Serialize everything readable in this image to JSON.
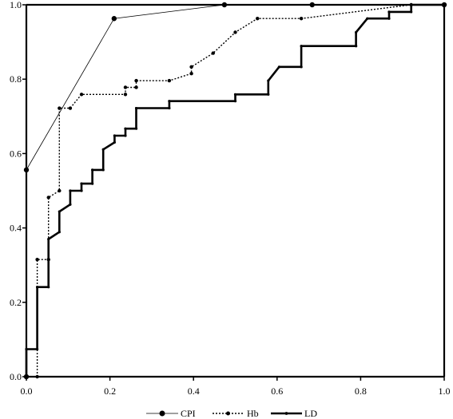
{
  "chart_data": {
    "type": "line",
    "title": "",
    "xlabel": "",
    "ylabel": "",
    "xlim": [
      0,
      1
    ],
    "ylim": [
      0,
      1
    ],
    "x_ticks": [
      "0.0",
      "0.2",
      "0.4",
      "0.6",
      "0.8",
      "1.0"
    ],
    "y_ticks": [
      "0.0",
      "0.2",
      "0.4",
      "0.6",
      "0.8",
      "1.0"
    ],
    "grid": false,
    "legend_position": "bottom",
    "series": [
      {
        "name": "CPI",
        "style": "thin-solid",
        "color": "#000000",
        "points": [
          [
            0.0,
            0.0
          ],
          [
            0.0,
            0.556
          ],
          [
            0.21,
            0.963
          ],
          [
            0.474,
            1.0
          ],
          [
            0.684,
            1.0
          ],
          [
            1.0,
            1.0
          ]
        ]
      },
      {
        "name": "Hb",
        "style": "dotted",
        "color": "#000000",
        "points": [
          [
            0.026,
            0.0
          ],
          [
            0.026,
            0.315
          ],
          [
            0.053,
            0.315
          ],
          [
            0.053,
            0.482
          ],
          [
            0.079,
            0.5
          ],
          [
            0.079,
            0.722
          ],
          [
            0.105,
            0.722
          ],
          [
            0.132,
            0.759
          ],
          [
            0.237,
            0.759
          ],
          [
            0.237,
            0.778
          ],
          [
            0.263,
            0.778
          ],
          [
            0.263,
            0.796
          ],
          [
            0.342,
            0.796
          ],
          [
            0.395,
            0.815
          ],
          [
            0.395,
            0.833
          ],
          [
            0.447,
            0.87
          ],
          [
            0.5,
            0.926
          ],
          [
            0.553,
            0.963
          ],
          [
            0.658,
            0.963
          ],
          [
            0.921,
            1.0
          ],
          [
            1.0,
            1.0
          ]
        ]
      },
      {
        "name": "LD",
        "style": "thick-solid",
        "color": "#000000",
        "points": [
          [
            0.0,
            0.0
          ],
          [
            0.0,
            0.074
          ],
          [
            0.026,
            0.074
          ],
          [
            0.026,
            0.241
          ],
          [
            0.053,
            0.241
          ],
          [
            0.053,
            0.37
          ],
          [
            0.079,
            0.389
          ],
          [
            0.079,
            0.444
          ],
          [
            0.105,
            0.463
          ],
          [
            0.105,
            0.5
          ],
          [
            0.132,
            0.5
          ],
          [
            0.132,
            0.519
          ],
          [
            0.158,
            0.519
          ],
          [
            0.158,
            0.556
          ],
          [
            0.184,
            0.556
          ],
          [
            0.184,
            0.611
          ],
          [
            0.211,
            0.63
          ],
          [
            0.211,
            0.648
          ],
          [
            0.237,
            0.648
          ],
          [
            0.237,
            0.667
          ],
          [
            0.263,
            0.667
          ],
          [
            0.263,
            0.722
          ],
          [
            0.342,
            0.722
          ],
          [
            0.342,
            0.741
          ],
          [
            0.5,
            0.741
          ],
          [
            0.5,
            0.759
          ],
          [
            0.579,
            0.759
          ],
          [
            0.579,
            0.796
          ],
          [
            0.605,
            0.833
          ],
          [
            0.658,
            0.833
          ],
          [
            0.658,
            0.889
          ],
          [
            0.789,
            0.889
          ],
          [
            0.789,
            0.926
          ],
          [
            0.816,
            0.963
          ],
          [
            0.868,
            0.963
          ],
          [
            0.868,
            0.981
          ],
          [
            0.921,
            0.981
          ],
          [
            0.921,
            1.0
          ],
          [
            1.0,
            1.0
          ]
        ]
      }
    ]
  }
}
